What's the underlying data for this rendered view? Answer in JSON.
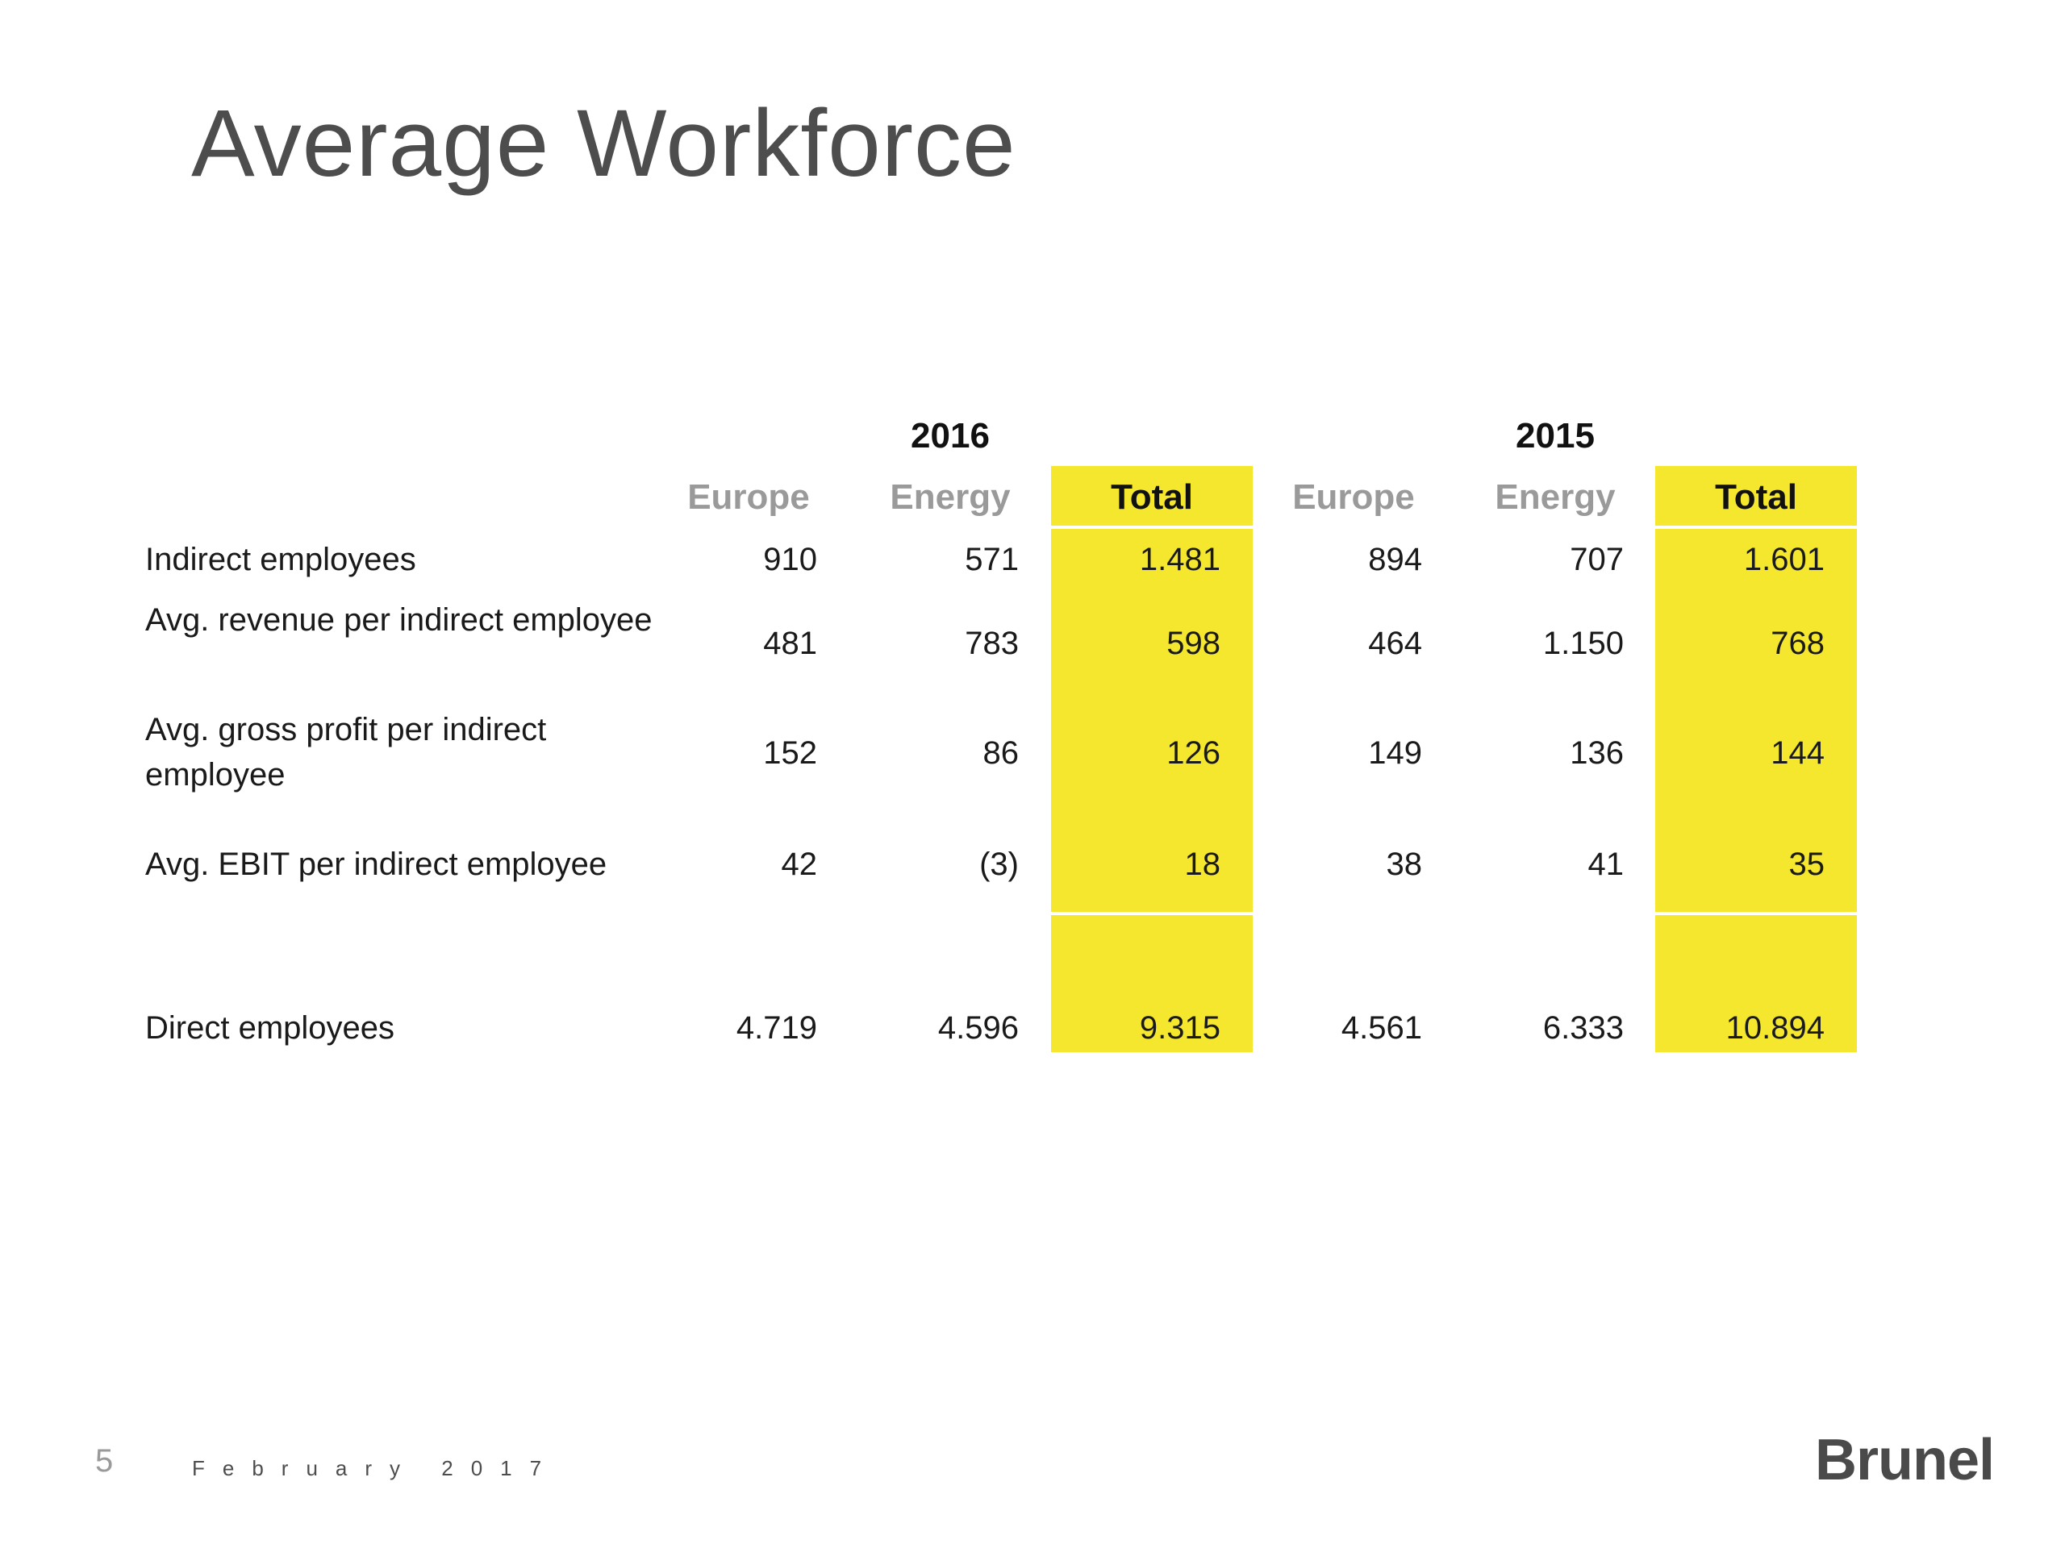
{
  "slide": {
    "title": "Average Workforce",
    "page_number": "5",
    "date": "February 2017",
    "logo_text": "Brunel"
  },
  "colors": {
    "highlight": "#f5e72e",
    "title": "#4d4d4d",
    "muted_header": "#9a9a9a"
  },
  "table": {
    "years": [
      "2016",
      "2015"
    ],
    "columns": [
      "Europe",
      "Energy",
      "Total",
      "Europe",
      "Energy",
      "Total"
    ],
    "rows": [
      {
        "label": "Indirect employees",
        "values": [
          "910",
          "571",
          "1.481",
          "894",
          "707",
          "1.601"
        ]
      },
      {
        "label": "Avg. revenue per indirect employee",
        "values": [
          "481",
          "783",
          "598",
          "464",
          "1.150",
          "768"
        ]
      },
      {
        "label": "Avg. gross profit per indirect employee",
        "values": [
          "152",
          "86",
          "126",
          "149",
          "136",
          "144"
        ]
      },
      {
        "label": "Avg. EBIT per indirect employee",
        "values": [
          "42",
          "(3)",
          "18",
          "38",
          "41",
          "35"
        ]
      },
      {
        "label": "Direct employees",
        "values": [
          "4.719",
          "4.596",
          "9.315",
          "4.561",
          "6.333",
          "10.894"
        ]
      }
    ]
  }
}
